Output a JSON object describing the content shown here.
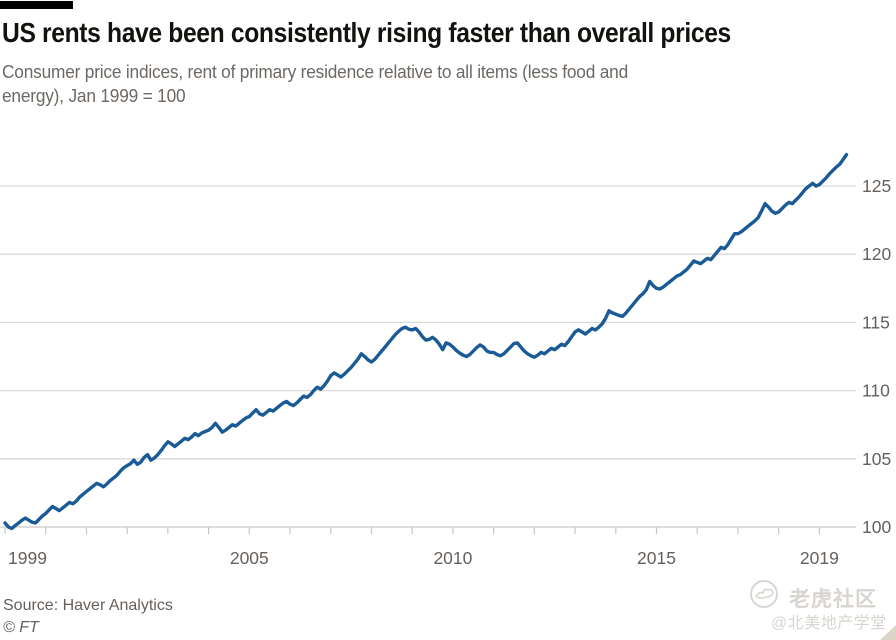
{
  "header": {
    "title": "US rents have been consistently rising faster than overall prices",
    "subtitle_lines": [
      "Consumer price indices, rent of primary residence relative to all items (less food and",
      "energy), Jan 1999 = 100"
    ]
  },
  "footer": {
    "source": "Source: Haver Analytics",
    "copyright": "© FT"
  },
  "watermark": {
    "logo_icon": "tiger-circle-icon",
    "brand": "老虎社区",
    "handle": "@北美地产学堂"
  },
  "colors": {
    "line": "#1a5a96",
    "grid": "#dbd9d4",
    "baseline": "#c9c6c1",
    "text_gray": "#66605c",
    "title_black": "#14120f",
    "topbar_black": "#000000",
    "watermark_gray": "#d8d4d0",
    "background": "#ffffff"
  },
  "chart_data": {
    "type": "line",
    "title": "US rents have been consistently rising faster than overall prices",
    "subtitle": "Consumer price indices, rent of primary residence relative to all items (less food and energy), Jan 1999 = 100",
    "frequency": "monthly",
    "x_start": {
      "year": 1999,
      "month": 1
    },
    "x_tick_years": [
      1999,
      2000,
      2001,
      2002,
      2003,
      2004,
      2005,
      2006,
      2007,
      2008,
      2009,
      2010,
      2011,
      2012,
      2013,
      2014,
      2015,
      2016,
      2017,
      2018,
      2019
    ],
    "x_labeled_years": [
      1999,
      2005,
      2010,
      2015,
      2019
    ],
    "y_ticks": [
      100,
      105,
      110,
      115,
      120,
      125
    ],
    "ylim": [
      99,
      128
    ],
    "grid": true,
    "y_axis_side": "right",
    "legend": "none",
    "series": [
      {
        "name": "Rent of primary residence relative to all items (less food and energy), Jan 1999 = 100",
        "values": [
          100.3,
          100.0,
          99.9,
          100.1,
          100.3,
          100.5,
          100.65,
          100.5,
          100.35,
          100.3,
          100.55,
          100.8,
          101.0,
          101.25,
          101.5,
          101.35,
          101.2,
          101.4,
          101.6,
          101.8,
          101.7,
          101.9,
          102.2,
          102.4,
          102.6,
          102.8,
          103.0,
          103.2,
          103.1,
          102.95,
          103.15,
          103.4,
          103.6,
          103.8,
          104.1,
          104.35,
          104.5,
          104.65,
          104.9,
          104.6,
          104.75,
          105.1,
          105.3,
          104.9,
          105.05,
          105.3,
          105.6,
          105.95,
          106.25,
          106.1,
          105.9,
          106.1,
          106.3,
          106.5,
          106.4,
          106.6,
          106.85,
          106.7,
          106.9,
          107.0,
          107.1,
          107.3,
          107.6,
          107.3,
          106.95,
          107.1,
          107.3,
          107.5,
          107.4,
          107.6,
          107.8,
          108.0,
          108.1,
          108.35,
          108.6,
          108.3,
          108.2,
          108.4,
          108.6,
          108.5,
          108.7,
          108.9,
          109.1,
          109.2,
          109.0,
          108.9,
          109.1,
          109.35,
          109.6,
          109.5,
          109.7,
          110.0,
          110.25,
          110.1,
          110.35,
          110.7,
          111.1,
          111.3,
          111.15,
          111.0,
          111.2,
          111.45,
          111.7,
          112.0,
          112.3,
          112.7,
          112.5,
          112.25,
          112.1,
          112.3,
          112.6,
          112.9,
          113.2,
          113.5,
          113.8,
          114.1,
          114.35,
          114.55,
          114.65,
          114.5,
          114.45,
          114.55,
          114.3,
          113.95,
          113.7,
          113.75,
          113.9,
          113.7,
          113.4,
          113.0,
          113.5,
          113.4,
          113.2,
          112.95,
          112.75,
          112.6,
          112.5,
          112.65,
          112.9,
          113.15,
          113.35,
          113.2,
          112.9,
          112.8,
          112.8,
          112.65,
          112.55,
          112.7,
          112.95,
          113.2,
          113.45,
          113.5,
          113.2,
          112.9,
          112.7,
          112.55,
          112.45,
          112.6,
          112.8,
          112.7,
          112.9,
          113.1,
          113.0,
          113.2,
          113.4,
          113.3,
          113.6,
          113.95,
          114.3,
          114.45,
          114.3,
          114.15,
          114.35,
          114.55,
          114.45,
          114.65,
          114.9,
          115.3,
          115.85,
          115.7,
          115.6,
          115.5,
          115.45,
          115.7,
          116.0,
          116.3,
          116.6,
          116.9,
          117.1,
          117.4,
          118.0,
          117.7,
          117.5,
          117.45,
          117.6,
          117.8,
          118.0,
          118.2,
          118.4,
          118.5,
          118.7,
          118.9,
          119.2,
          119.5,
          119.4,
          119.3,
          119.5,
          119.7,
          119.6,
          119.9,
          120.2,
          120.5,
          120.4,
          120.7,
          121.1,
          121.5,
          121.5,
          121.65,
          121.85,
          122.05,
          122.25,
          122.45,
          122.7,
          123.2,
          123.7,
          123.45,
          123.15,
          123.0,
          123.1,
          123.35,
          123.6,
          123.8,
          123.7,
          123.95,
          124.2,
          124.5,
          124.8,
          125.0,
          125.2,
          125.0,
          125.1,
          125.35,
          125.6,
          125.9,
          126.15,
          126.4,
          126.6,
          126.95,
          127.3
        ]
      }
    ]
  }
}
